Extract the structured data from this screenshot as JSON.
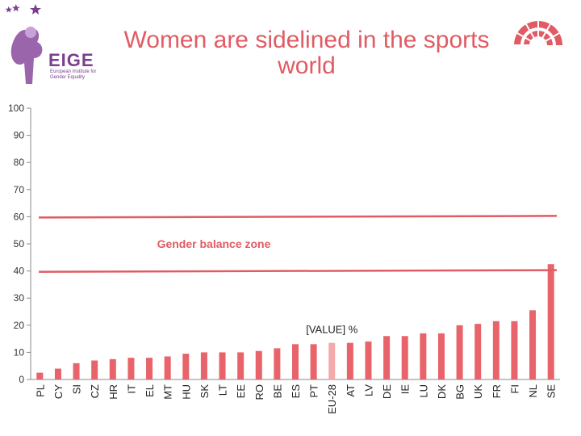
{
  "header": {
    "title": "Women are sidelined in the sports world",
    "logo_name": "EIGE",
    "logo_tagline": "European Institute for Gender Equality"
  },
  "icons": {
    "logo": "eige-logo-icon",
    "parliament": "parliament-hemicycle-icon"
  },
  "colors": {
    "bar": "#e8636a",
    "highlight_bar": "#f4aaaa",
    "line": "#e05b62",
    "title": "#e15b64"
  },
  "chart_data": {
    "type": "bar",
    "title": "Women are sidelined in the sports world",
    "categories": [
      "PL",
      "CY",
      "SI",
      "CZ",
      "HR",
      "IT",
      "EL",
      "MT",
      "HU",
      "SK",
      "LT",
      "EE",
      "RO",
      "BE",
      "ES",
      "PT",
      "EU-28",
      "AT",
      "LV",
      "DE",
      "IE",
      "LU",
      "DK",
      "BG",
      "UK",
      "FR",
      "FI",
      "NL",
      "SE"
    ],
    "values": [
      2.5,
      4,
      6,
      7,
      7.5,
      8,
      8,
      8.5,
      9.5,
      10,
      10,
      10,
      10.5,
      11.5,
      13,
      13,
      13.5,
      13.5,
      14,
      16,
      16,
      17,
      17,
      20,
      20.5,
      21.5,
      21.5,
      25.5,
      42.5
    ],
    "highlight_category": "EU-28",
    "ylim": [
      0,
      100
    ],
    "yticks": [
      0,
      10,
      20,
      30,
      40,
      50,
      60,
      70,
      80,
      90,
      100
    ],
    "unit": "%",
    "reference_lines": [
      40,
      60
    ],
    "zone_label": "Gender balance zone",
    "value_label": "[VALUE] %",
    "value_label_category": "EU-28",
    "grid": false,
    "legend": "none"
  }
}
